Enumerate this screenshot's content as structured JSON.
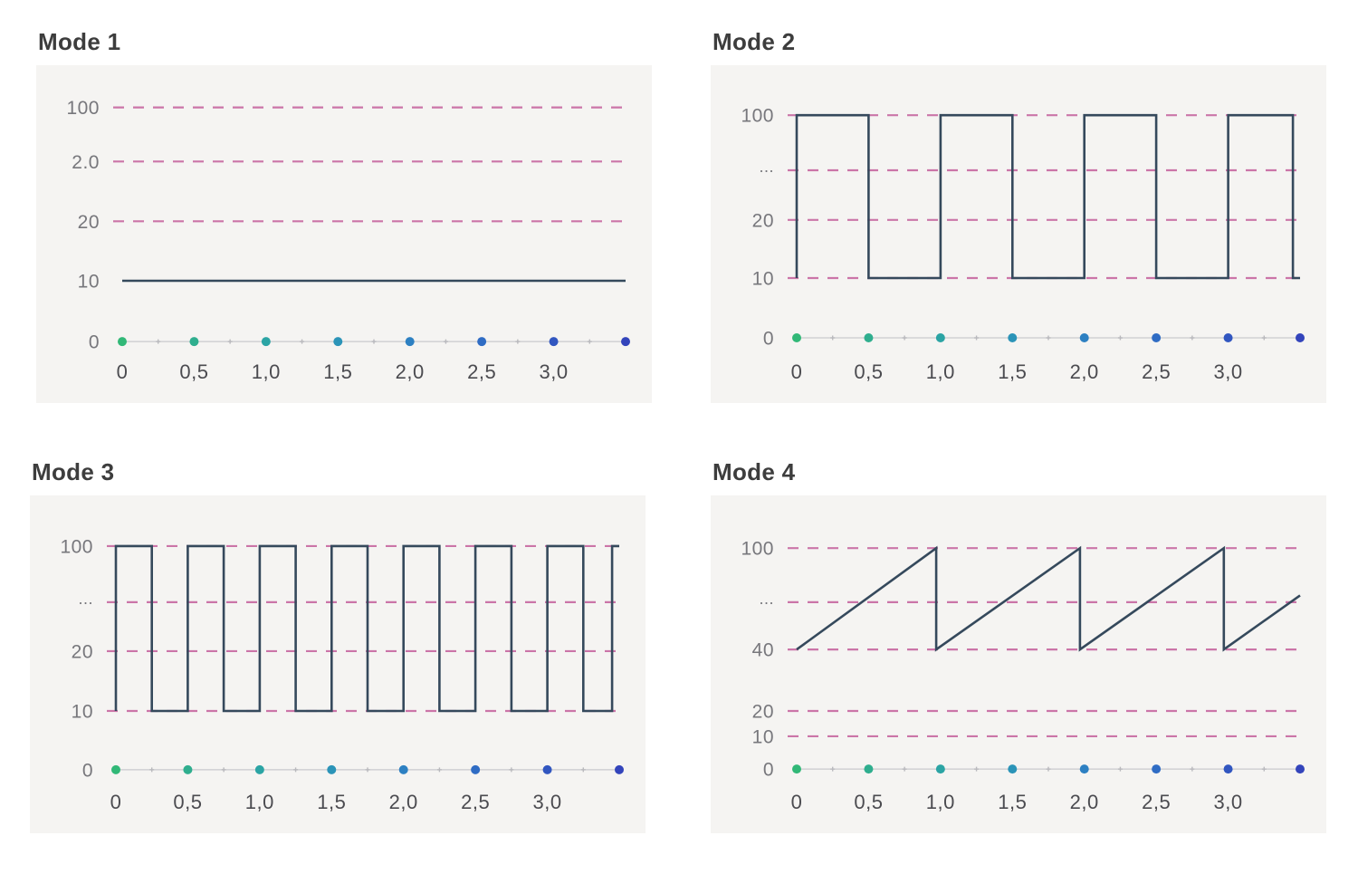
{
  "page": {
    "background": "#ffffff",
    "panel_background": "#f5f4f2"
  },
  "colors": {
    "title_text": "#3d3d3d",
    "y_label_text": "#77777c",
    "x_label_text": "#4b4b50",
    "gridline_dash": "#c4609c",
    "waveform_line": "#35495c",
    "axis_line": "#c9c9cd",
    "mid_marker": "#b9b9bd",
    "dot_gradient": [
      "#31b877",
      "#2fae8e",
      "#2ba4a4",
      "#2b94b8",
      "#2d80c2",
      "#2f6cc4",
      "#3156c0",
      "#3344bb"
    ]
  },
  "chart_data": [
    {
      "type": "line",
      "title": "Mode 1",
      "xlabel": "",
      "ylabel": "",
      "xlim": [
        0,
        3.5
      ],
      "y_axis_type": "ordinal",
      "grid": "dashed-horizontal",
      "legend": "none",
      "y_tick_labels": [
        "100",
        "2.0",
        "20",
        "10",
        "0"
      ],
      "x_tick_labels": [
        "0",
        "0,5",
        "1,0",
        "1,5",
        "2,0",
        "2,5",
        "3,0"
      ],
      "dashed_row_indices": [
        0,
        1,
        2
      ],
      "row_fracs": [
        0.125,
        0.285,
        0.462,
        0.638,
        0.818
      ],
      "value_anchors": [
        {
          "value": 100,
          "row": 0
        },
        {
          "value": 10,
          "row": 3
        }
      ],
      "axis_dots_x": [
        0,
        0.5,
        1.0,
        1.5,
        2.0,
        2.5,
        3.0,
        3.5
      ],
      "points": [
        [
          0,
          10
        ],
        [
          3.5,
          10
        ]
      ],
      "description": "Constant level at 10 across the full time range"
    },
    {
      "type": "line",
      "title": "Mode 2",
      "xlabel": "",
      "ylabel": "",
      "xlim": [
        0,
        3.5
      ],
      "y_axis_type": "ordinal",
      "grid": "dashed-horizontal",
      "legend": "none",
      "y_tick_labels": [
        "100",
        "...",
        "20",
        "10",
        "0"
      ],
      "x_tick_labels": [
        "0",
        "0,5",
        "1,0",
        "1,5",
        "2,0",
        "2,5",
        "3,0"
      ],
      "dashed_row_indices": [
        0,
        1,
        2,
        3
      ],
      "row_fracs": [
        0.148,
        0.311,
        0.458,
        0.63,
        0.807
      ],
      "value_anchors": [
        {
          "value": 100,
          "row": 0
        },
        {
          "value": 10,
          "row": 3
        }
      ],
      "axis_dots_x": [
        0,
        0.5,
        1.0,
        1.5,
        2.0,
        2.5,
        3.0,
        3.5
      ],
      "points": [
        [
          0,
          10
        ],
        [
          0,
          100
        ],
        [
          0.5,
          100
        ],
        [
          0.5,
          10
        ],
        [
          1,
          10
        ],
        [
          1,
          100
        ],
        [
          1.5,
          100
        ],
        [
          1.5,
          10
        ],
        [
          2,
          10
        ],
        [
          2,
          100
        ],
        [
          2.5,
          100
        ],
        [
          2.5,
          10
        ],
        [
          3,
          10
        ],
        [
          3,
          100
        ],
        [
          3.45,
          100
        ],
        [
          3.45,
          10
        ],
        [
          3.5,
          10
        ]
      ],
      "description": "Square wave between 10 and 100, period 1.0, duty 50%"
    },
    {
      "type": "line",
      "title": "Mode 3",
      "xlabel": "",
      "ylabel": "",
      "xlim": [
        0,
        3.5
      ],
      "y_axis_type": "ordinal",
      "grid": "dashed-horizontal",
      "legend": "none",
      "y_tick_labels": [
        "100",
        "...",
        "20",
        "10",
        "0"
      ],
      "x_tick_labels": [
        "0",
        "0,5",
        "1,0",
        "1,5",
        "2,0",
        "2,5",
        "3,0"
      ],
      "dashed_row_indices": [
        0,
        1,
        2,
        3
      ],
      "row_fracs": [
        0.15,
        0.316,
        0.461,
        0.638,
        0.812
      ],
      "value_anchors": [
        {
          "value": 100,
          "row": 0
        },
        {
          "value": 10,
          "row": 3
        }
      ],
      "axis_dots_x": [
        0,
        0.5,
        1.0,
        1.5,
        2.0,
        2.5,
        3.0,
        3.5
      ],
      "points": [
        [
          0,
          10
        ],
        [
          0,
          100
        ],
        [
          0.25,
          100
        ],
        [
          0.25,
          10
        ],
        [
          0.5,
          10
        ],
        [
          0.5,
          100
        ],
        [
          0.75,
          100
        ],
        [
          0.75,
          10
        ],
        [
          1,
          10
        ],
        [
          1,
          100
        ],
        [
          1.25,
          100
        ],
        [
          1.25,
          10
        ],
        [
          1.5,
          10
        ],
        [
          1.5,
          100
        ],
        [
          1.75,
          100
        ],
        [
          1.75,
          10
        ],
        [
          2,
          10
        ],
        [
          2,
          100
        ],
        [
          2.25,
          100
        ],
        [
          2.25,
          10
        ],
        [
          2.5,
          10
        ],
        [
          2.5,
          100
        ],
        [
          2.75,
          100
        ],
        [
          2.75,
          10
        ],
        [
          3,
          10
        ],
        [
          3,
          100
        ],
        [
          3.25,
          100
        ],
        [
          3.25,
          10
        ],
        [
          3.45,
          10
        ],
        [
          3.45,
          100
        ],
        [
          3.5,
          100
        ]
      ],
      "description": "Square wave between 10 and 100, period 0.5, duty 50%"
    },
    {
      "type": "line",
      "title": "Mode 4",
      "xlabel": "",
      "ylabel": "",
      "xlim": [
        0,
        3.5
      ],
      "y_axis_type": "ordinal",
      "grid": "dashed-horizontal",
      "legend": "none",
      "y_tick_labels": [
        "100",
        "...",
        "40",
        "20",
        "10",
        "0"
      ],
      "x_tick_labels": [
        "0",
        "0,5",
        "1,0",
        "1,5",
        "2,0",
        "2,5",
        "3,0"
      ],
      "dashed_row_indices": [
        0,
        1,
        2,
        3,
        4
      ],
      "row_fracs": [
        0.156,
        0.316,
        0.456,
        0.638,
        0.713,
        0.81
      ],
      "value_anchors": [
        {
          "value": 100,
          "row": 0
        },
        {
          "value": 40,
          "row": 2
        }
      ],
      "axis_dots_x": [
        0,
        0.5,
        1.0,
        1.5,
        2.0,
        2.5,
        3.0,
        3.5
      ],
      "points": [
        [
          0,
          40
        ],
        [
          0.97,
          100
        ],
        [
          0.97,
          40
        ],
        [
          1.97,
          100
        ],
        [
          1.97,
          40
        ],
        [
          2.97,
          100
        ],
        [
          2.97,
          40
        ],
        [
          3.5,
          72
        ]
      ],
      "description": "Sawtooth rising from 40 to 100 with period ~1.0, ending mid-ramp at ~72"
    }
  ]
}
